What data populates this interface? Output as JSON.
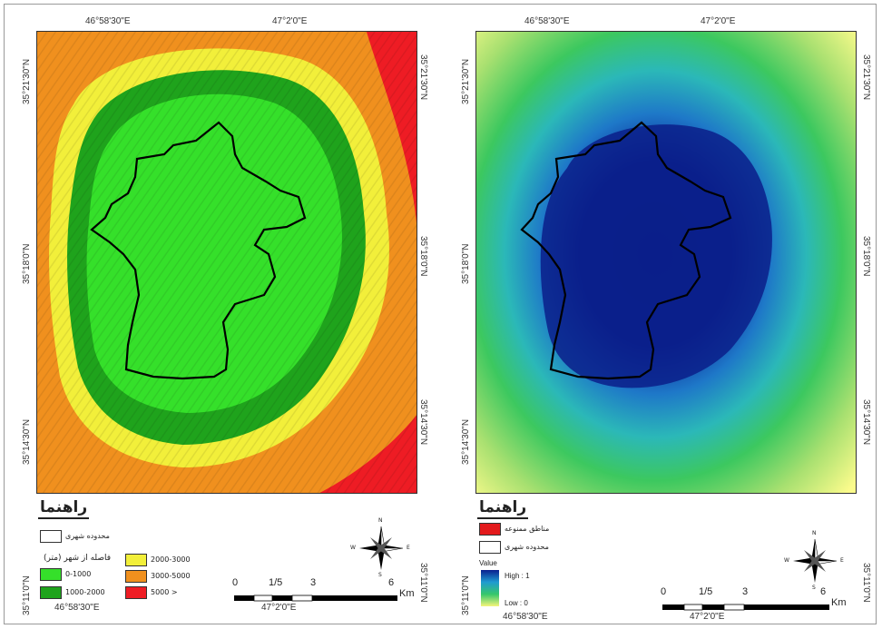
{
  "left_map": {
    "top_lon_labels": [
      "46°58'30\"E",
      "47°2'0\"E"
    ],
    "bottom_lon_labels": [
      "46°58'30\"E",
      "47°2'0\"E"
    ],
    "left_lat_labels": [
      "35°21'30\"N",
      "35°18'0\"N",
      "35°14'30\"N",
      "35°11'0\"N"
    ],
    "right_lat_labels": [
      "35°21'30\"N",
      "35°18'0\"N",
      "35°14'30\"N",
      "35°11'0\"N"
    ],
    "legend": {
      "title": "راهنما",
      "boundary_label": "محدوده شهری",
      "distance_heading": "فاصله از شهر (متر)",
      "classes": [
        {
          "label": "0-1000",
          "color": "#35e02a"
        },
        {
          "label": "1000-2000",
          "color": "#1fa31c"
        },
        {
          "label": "2000-3000",
          "color": "#f2ef3a"
        },
        {
          "label": "3000-5000",
          "color": "#f0901e"
        },
        {
          "label": "5000 >",
          "color": "#ee1c24"
        }
      ]
    },
    "scale": {
      "ticks": [
        "0",
        "1/5",
        "3",
        "6"
      ],
      "unit": "Km"
    },
    "compass": {
      "n": "N",
      "s": "S",
      "e": "E",
      "w": "W"
    }
  },
  "right_map": {
    "top_lon_labels": [
      "46°58'30\"E",
      "47°2'0\"E"
    ],
    "bottom_lon_labels": [
      "46°58'30\"E",
      "47°2'0\"E"
    ],
    "left_lat_labels": [
      "35°21'30\"N",
      "35°18'0\"N",
      "35°14'30\"N",
      "35°11'0\"N"
    ],
    "right_lat_labels": [
      "35°21'30\"N",
      "35°18'0\"N",
      "35°14'30\"N",
      "35°11'0\"N"
    ],
    "legend": {
      "title": "راهنما",
      "restricted_label": "مناطق ممنوعه",
      "restricted_color": "#e31a1c",
      "boundary_label": "محدوده شهری",
      "value_heading": "Value",
      "high_label": "High : 1",
      "low_label": "Low : 0",
      "ramp_colors": [
        "#0a1f8f",
        "#1f9bd1",
        "#36c76a",
        "#f5f57a"
      ]
    },
    "scale": {
      "ticks": [
        "0",
        "1/5",
        "3",
        "6"
      ],
      "unit": "Km"
    },
    "compass": {
      "n": "N",
      "s": "S",
      "e": "E",
      "w": "W"
    }
  },
  "colors": {
    "city_boundary": "#000000",
    "suitability_low": "#ffff99",
    "suitability_high": "#0b1f8a"
  }
}
